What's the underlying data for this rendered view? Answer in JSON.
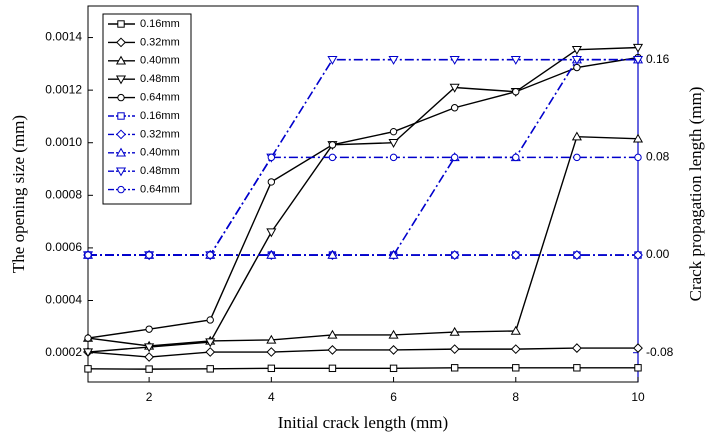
{
  "chart_data": {
    "type": "line",
    "x_label": "Initial crack length (mm)",
    "y_label": "The opening size (mm)",
    "y2_label": "Crack propagation length (mm)",
    "x": [
      1,
      2,
      3,
      4,
      5,
      6,
      7,
      8,
      9,
      10
    ],
    "xlim": [
      1,
      10
    ],
    "xticks": [
      2,
      4,
      6,
      8,
      10
    ],
    "ylim": [
      9e-05,
      0.00152
    ],
    "yticks": [
      0.0002,
      0.0004,
      0.0006,
      0.0008,
      {
        "value": 0.001,
        "label": "0.0010"
      },
      0.0012,
      0.0014
    ],
    "y2lim": [
      -0.104,
      0.204
    ],
    "y2ticks": [
      -0.08,
      {
        "value": 0,
        "label": "0.00"
      },
      0.08,
      0.16
    ],
    "y2_color": "#0000cc",
    "legend": "upper left",
    "series": [
      {
        "name": "0.16mm",
        "color": "#000000",
        "marker": "square",
        "linestyle": "solid",
        "values": [
          0.00014,
          0.000139,
          0.00014,
          0.000142,
          0.000142,
          0.000142,
          0.000144,
          0.000144,
          0.000144,
          0.000144
        ]
      },
      {
        "name": "0.32mm",
        "color": "#000000",
        "marker": "diamond",
        "linestyle": "solid",
        "values": [
          0.000204,
          0.000185,
          0.000204,
          0.000204,
          0.000212,
          0.000212,
          0.000215,
          0.000215,
          0.000219,
          0.000219
        ]
      },
      {
        "name": "0.40mm",
        "color": "#000000",
        "marker": "triangle-up",
        "linestyle": "solid",
        "values": [
          0.000257,
          0.000227,
          0.000246,
          0.00025,
          0.000269,
          0.000269,
          0.00028,
          0.000284,
          0.001023,
          0.001015
        ]
      },
      {
        "name": "0.48mm",
        "color": "#000000",
        "marker": "triangle-down",
        "linestyle": "solid",
        "values": [
          0.000204,
          0.000223,
          0.000242,
          0.00066,
          0.000992,
          0.001,
          0.00121,
          0.001194,
          0.001354,
          0.001362
        ]
      },
      {
        "name": "0.64mm",
        "color": "#000000",
        "marker": "circle",
        "linestyle": "solid",
        "values": [
          0.000257,
          0.000291,
          0.000326,
          0.000851,
          0.000992,
          0.001042,
          0.001133,
          0.001194,
          0.001286,
          0.001324
        ]
      },
      {
        "name": "0.16mm",
        "color": "#0000cc",
        "marker": "square",
        "linestyle": "dashdot",
        "axis": "y2",
        "values": [
          0,
          0,
          0,
          0,
          0,
          0,
          0,
          0,
          0,
          0
        ]
      },
      {
        "name": "0.32mm",
        "color": "#0000cc",
        "marker": "diamond",
        "linestyle": "dashdot",
        "axis": "y2",
        "values": [
          0,
          0,
          0,
          0,
          0,
          0,
          0,
          0,
          0,
          0
        ]
      },
      {
        "name": "0.40mm",
        "color": "#0000cc",
        "marker": "triangle-up",
        "linestyle": "dashdot",
        "axis": "y2",
        "values": [
          0,
          0,
          0,
          0,
          0,
          0,
          0.08,
          0.08,
          0.16,
          0.16
        ]
      },
      {
        "name": "0.48mm",
        "color": "#0000cc",
        "marker": "triangle-down",
        "linestyle": "dashdot",
        "axis": "y2",
        "values": [
          0,
          0,
          0,
          0.08,
          0.16,
          0.16,
          0.16,
          0.16,
          0.16,
          0.16
        ]
      },
      {
        "name": "0.64mm",
        "color": "#0000cc",
        "marker": "circle",
        "linestyle": "dashdot",
        "axis": "y2",
        "values": [
          0,
          0,
          0,
          0.08,
          0.08,
          0.08,
          0.08,
          0.08,
          0.08,
          0.08
        ]
      }
    ]
  }
}
